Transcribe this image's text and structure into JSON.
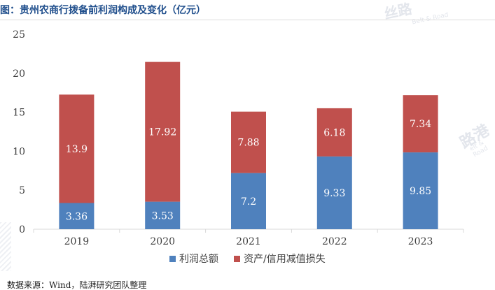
{
  "title": "图：贵州农商行拨备前利润构成及变化（亿元）",
  "source": "数据来源：Wind，陆湃研究团队整理",
  "watermark": {
    "main": "丝路",
    "sub": "Belt & Road",
    "main2": "路港",
    "sub2": "elt & Road"
  },
  "colors": {
    "profit": "#4f81bd",
    "loss": "#c0504d",
    "axis": "#d9d9d9",
    "text": "#404040"
  },
  "chart_data": {
    "type": "bar",
    "stacked": true,
    "categories": [
      "2019",
      "2020",
      "2021",
      "2022",
      "2023"
    ],
    "series": [
      {
        "name": "利润总额",
        "values": [
          3.36,
          3.53,
          7.2,
          9.33,
          9.85
        ],
        "labels": [
          "3.36",
          "3.53",
          "7.2",
          "9.33",
          "9.85"
        ]
      },
      {
        "name": "资产/信用减值损失",
        "values": [
          13.9,
          17.92,
          7.88,
          6.18,
          7.34
        ],
        "labels": [
          "13.9",
          "17.92",
          "7.88",
          "6.18",
          "7.34"
        ]
      }
    ],
    "ylim": [
      0,
      25
    ],
    "yticks": [
      "0",
      "5",
      "10",
      "15",
      "20",
      "25"
    ],
    "xlabel": "",
    "ylabel": "",
    "grid": false,
    "legend": "bottom-center"
  }
}
